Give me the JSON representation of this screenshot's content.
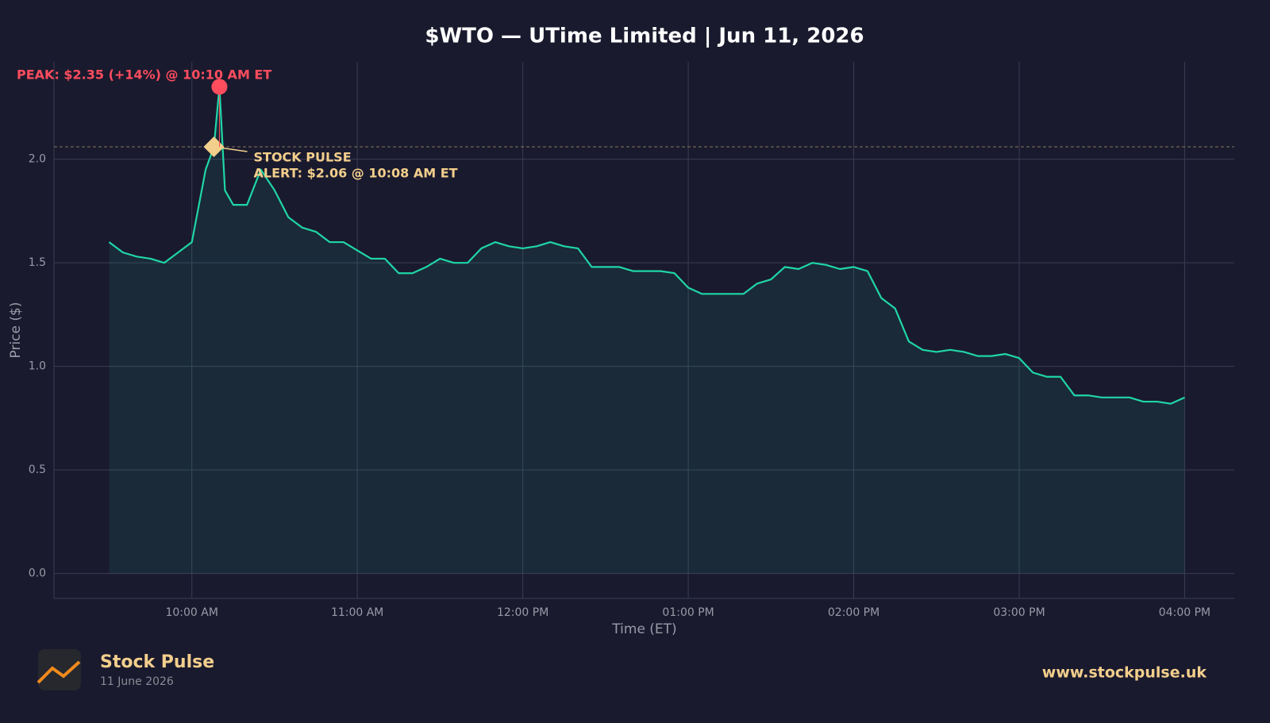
{
  "chart_data": {
    "type": "line",
    "title": "$WTO — UTime Limited  |  Jun 11, 2026",
    "x_label": "Time (ET)",
    "y_label": "Price ($)",
    "color": "#1fd6a6",
    "x": [
      "09:30 AM",
      "09:35 AM",
      "09:40 AM",
      "09:45 AM",
      "09:50 AM",
      "09:55 AM",
      "10:00 AM",
      "10:05 AM",
      "10:08 AM",
      "10:10 AM",
      "10:12 AM",
      "10:15 AM",
      "10:20 AM",
      "10:25 AM",
      "10:30 AM",
      "10:35 AM",
      "10:40 AM",
      "10:45 AM",
      "10:50 AM",
      "10:55 AM",
      "11:00 AM",
      "11:05 AM",
      "11:10 AM",
      "11:15 AM",
      "11:20 AM",
      "11:25 AM",
      "11:30 AM",
      "11:35 AM",
      "11:40 AM",
      "11:45 AM",
      "11:50 AM",
      "11:55 AM",
      "12:00 PM",
      "12:05 PM",
      "12:10 PM",
      "12:15 PM",
      "12:20 PM",
      "12:25 PM",
      "12:30 PM",
      "12:35 PM",
      "12:40 PM",
      "12:45 PM",
      "12:50 PM",
      "12:55 PM",
      "01:00 PM",
      "01:05 PM",
      "01:10 PM",
      "01:15 PM",
      "01:20 PM",
      "01:25 PM",
      "01:30 PM",
      "01:35 PM",
      "01:40 PM",
      "01:45 PM",
      "01:50 PM",
      "01:55 PM",
      "02:00 PM",
      "02:05 PM",
      "02:10 PM",
      "02:15 PM",
      "02:20 PM",
      "02:25 PM",
      "02:30 PM",
      "02:35 PM",
      "02:40 PM",
      "02:45 PM",
      "02:50 PM",
      "02:55 PM",
      "03:00 PM",
      "03:05 PM",
      "03:10 PM",
      "03:15 PM",
      "03:20 PM",
      "03:25 PM",
      "03:30 PM",
      "03:35 PM",
      "03:40 PM",
      "03:45 PM",
      "03:50 PM",
      "03:55 PM",
      "04:00 PM"
    ],
    "values": [
      1.6,
      1.55,
      1.53,
      1.52,
      1.5,
      1.55,
      1.6,
      1.95,
      2.06,
      2.35,
      1.85,
      1.78,
      1.78,
      1.95,
      1.85,
      1.72,
      1.67,
      1.65,
      1.6,
      1.6,
      1.56,
      1.52,
      1.52,
      1.45,
      1.45,
      1.48,
      1.52,
      1.5,
      1.5,
      1.57,
      1.6,
      1.58,
      1.57,
      1.58,
      1.6,
      1.58,
      1.57,
      1.48,
      1.48,
      1.48,
      1.46,
      1.46,
      1.46,
      1.45,
      1.38,
      1.35,
      1.35,
      1.35,
      1.35,
      1.4,
      1.42,
      1.48,
      1.47,
      1.5,
      1.49,
      1.47,
      1.48,
      1.46,
      1.33,
      1.28,
      1.12,
      1.08,
      1.07,
      1.08,
      1.07,
      1.05,
      1.05,
      1.06,
      1.04,
      0.97,
      0.95,
      0.95,
      0.86,
      0.86,
      0.85,
      0.85,
      0.85,
      0.83,
      0.83,
      0.82,
      0.85
    ],
    "xlim": [
      "09:10 AM",
      "04:18 PM"
    ],
    "xticks": [
      "10:00 AM",
      "11:00 AM",
      "12:00 PM",
      "01:00 PM",
      "02:00 PM",
      "03:00 PM",
      "04:00 PM"
    ],
    "ylim": [
      -0.12,
      2.47
    ],
    "yticks": [
      {
        "value": 0,
        "label": "0.0"
      },
      0.5,
      {
        "value": 1,
        "label": "1.0"
      },
      1.5,
      {
        "value": 2,
        "label": "2.0"
      }
    ],
    "grid": true,
    "peak": {
      "x": "10:10 AM",
      "value": 2.35,
      "label": "PEAK: $2.35 (+14%) @ 10:10 AM ET",
      "color": "#ff4d5e"
    },
    "alert": {
      "x": "10:08 AM",
      "value": 2.06,
      "label": [
        "STOCK PULSE",
        "ALERT: $2.06 @ 10:08 AM ET"
      ],
      "color": "#f3cf8c"
    }
  },
  "footer": {
    "brand": "Stock Pulse",
    "date": "11 June 2026",
    "url": "www.stockpulse.uk"
  }
}
